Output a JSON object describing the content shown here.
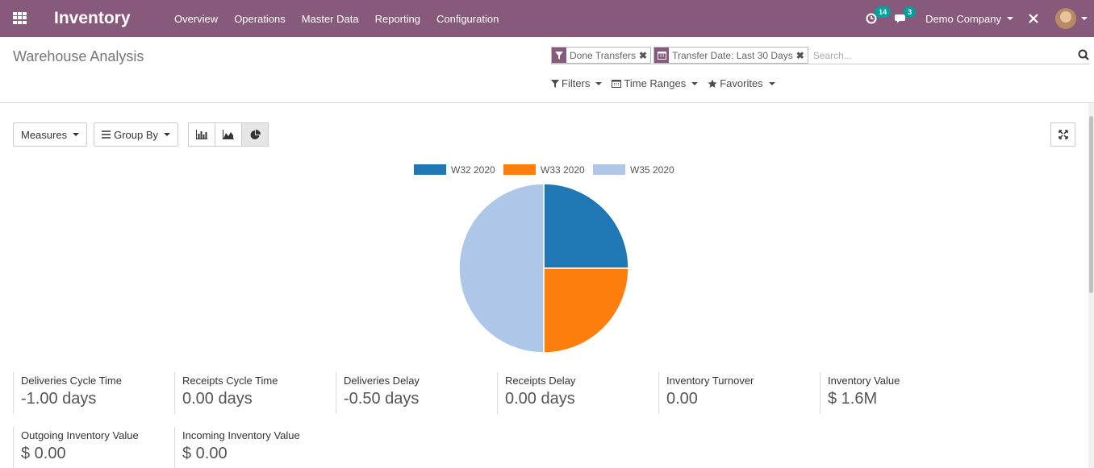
{
  "navbar": {
    "app_name": "Inventory",
    "menu": [
      "Overview",
      "Operations",
      "Master Data",
      "Reporting",
      "Configuration"
    ],
    "activity_count": "14",
    "messages_count": "3",
    "company": "Demo Company",
    "brand_color": "#875a7b",
    "badge_color": "#00a09d"
  },
  "control_panel": {
    "title": "Warehouse Analysis",
    "facets": [
      {
        "label": "Done Transfers",
        "icon": "filter-icon"
      },
      {
        "label": "Transfer Date: Last 30 Days",
        "icon": "calendar-icon"
      }
    ],
    "search_placeholder": "Search...",
    "filter_menus": [
      "Filters",
      "Time Ranges",
      "Favorites"
    ]
  },
  "toolbar": {
    "measures": "Measures",
    "group_by": "Group By",
    "active_view": "pie"
  },
  "chart_data": {
    "type": "pie",
    "categories": [
      "W32 2020",
      "W33 2020",
      "W35 2020"
    ],
    "values": [
      1,
      1,
      2
    ],
    "colors": [
      "#1f77b4",
      "#ff7f0e",
      "#aec7e8"
    ],
    "legend_position": "top"
  },
  "stats": [
    {
      "label": "Deliveries Cycle Time",
      "value": "-1.00 days"
    },
    {
      "label": "Receipts Cycle Time",
      "value": "0.00 days"
    },
    {
      "label": "Deliveries Delay",
      "value": "-0.50 days"
    },
    {
      "label": "Receipts Delay",
      "value": "0.00 days"
    },
    {
      "label": "Inventory Turnover",
      "value": "0.00"
    },
    {
      "label": "Inventory Value",
      "value": "$ 1.6M"
    },
    {
      "label": "Outgoing Inventory Value",
      "value": "$ 0.00"
    },
    {
      "label": "Incoming Inventory Value",
      "value": "$ 0.00"
    }
  ]
}
